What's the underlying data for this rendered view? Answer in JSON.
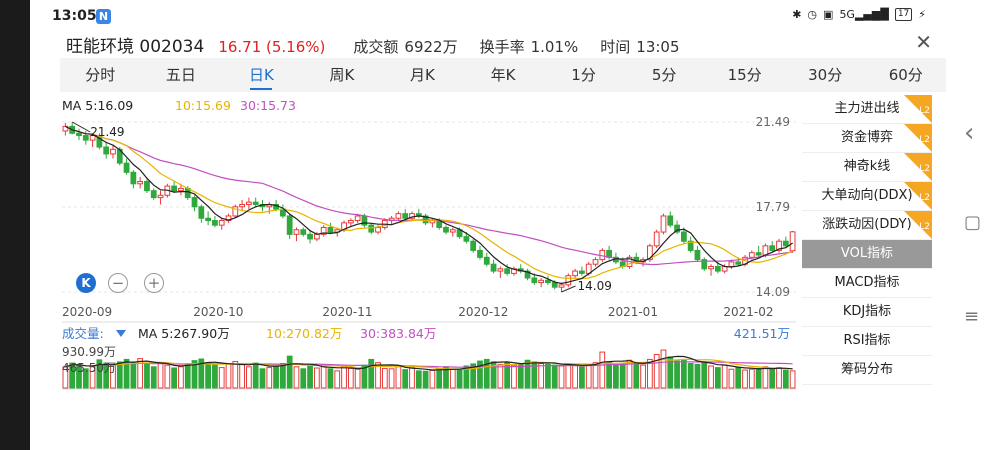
{
  "status_bar": {
    "time": "13:05",
    "app_badge": "N",
    "right_icons": [
      "bluetooth-icon",
      "alarm-icon",
      "hd-icon",
      "signal-icon"
    ],
    "signal_text": "5G",
    "battery": "17"
  },
  "header": {
    "name": "旺能环境 002034",
    "price": "16.71 (5.16%)",
    "turnover_label": "成交额",
    "turnover_value": "6922万",
    "turnover_rate_label": "换手率",
    "turnover_rate_value": "1.01%",
    "time_label": "时间",
    "time_value": "13:05",
    "close_glyph": "✕"
  },
  "tabs": [
    {
      "label": "分时",
      "active": false
    },
    {
      "label": "五日",
      "active": false
    },
    {
      "label": "日K",
      "active": true
    },
    {
      "label": "周K",
      "active": false
    },
    {
      "label": "月K",
      "active": false
    },
    {
      "label": "年K",
      "active": false
    },
    {
      "label": "1分",
      "active": false
    },
    {
      "label": "5分",
      "active": false
    },
    {
      "label": "15分",
      "active": false
    },
    {
      "label": "30分",
      "active": false
    },
    {
      "label": "60分",
      "active": false
    }
  ],
  "ma_legend": {
    "ma5": "MA  5:16.09",
    "ma10": "10:15.69",
    "ma30": "30:15.73"
  },
  "vol_legend": {
    "label": "成交量:",
    "ma5": "MA  5:267.90万",
    "ma10": "10:270.82万",
    "ma30": "30:383.84万",
    "max_label": "421.51万",
    "left_top": "930.99万",
    "left_mid": "465.50万"
  },
  "price_labels": {
    "high": "21.49",
    "mid": "17.79",
    "low": "14.09",
    "high_annot": "21.49",
    "low_annot": "14.09"
  },
  "colors": {
    "up": "#e83a3a",
    "down": "#2fa83c",
    "ma5": "#222222",
    "ma10": "#e8b400",
    "ma30": "#c24fc2",
    "accent": "#1f6fd1",
    "panel_badge": "#f5a623"
  },
  "side_panel": [
    {
      "label": "主力进出线",
      "badge": true,
      "selected": false
    },
    {
      "label": "资金博弈",
      "badge": true,
      "selected": false
    },
    {
      "label": "神奇k线",
      "badge": true,
      "selected": false
    },
    {
      "label": "大单动向(DDX)",
      "badge": true,
      "selected": false
    },
    {
      "label": "涨跌动因(DDY)",
      "badge": true,
      "selected": false
    },
    {
      "label": "VOL指标",
      "badge": false,
      "selected": true
    },
    {
      "label": "MACD指标",
      "badge": false,
      "selected": false
    },
    {
      "label": "KDJ指标",
      "badge": false,
      "selected": false
    },
    {
      "label": "RSI指标",
      "badge": false,
      "selected": false
    },
    {
      "label": "筹码分布",
      "badge": false,
      "selected": false
    }
  ],
  "side_badge_text": "L2",
  "zoom": {
    "k_label": "K",
    "minus": "−",
    "plus": "+"
  },
  "nav": {
    "back": "‹",
    "home": "▢",
    "menu": "≡"
  },
  "chart_data": {
    "type": "candlestick",
    "x_tick_labels": [
      "2020-09",
      "2020-10",
      "2020-11",
      "2020-12",
      "2021-01",
      "2021-02"
    ],
    "x_tick_index": [
      0,
      23,
      42,
      62,
      84,
      101
    ],
    "ylim": [
      14.09,
      21.49
    ],
    "y_ticks": [
      21.49,
      17.79,
      14.09
    ],
    "ohlc": [
      [
        21.1,
        21.45,
        20.9,
        21.3
      ],
      [
        21.3,
        21.49,
        20.95,
        21.0
      ],
      [
        21.0,
        21.2,
        20.7,
        20.9
      ],
      [
        20.9,
        21.1,
        20.5,
        20.7
      ],
      [
        20.7,
        21.0,
        20.4,
        20.9
      ],
      [
        20.9,
        21.0,
        20.3,
        20.4
      ],
      [
        20.4,
        20.6,
        19.9,
        20.1
      ],
      [
        20.1,
        20.5,
        19.9,
        20.3
      ],
      [
        20.3,
        20.4,
        19.6,
        19.7
      ],
      [
        19.7,
        19.9,
        19.2,
        19.3
      ],
      [
        19.3,
        19.4,
        18.6,
        18.8
      ],
      [
        18.8,
        19.1,
        18.6,
        18.9
      ],
      [
        18.9,
        19.0,
        18.4,
        18.5
      ],
      [
        18.5,
        18.6,
        18.1,
        18.2
      ],
      [
        18.2,
        18.5,
        17.9,
        18.3
      ],
      [
        18.3,
        18.8,
        18.2,
        18.7
      ],
      [
        18.7,
        18.9,
        18.4,
        18.5
      ],
      [
        18.5,
        18.8,
        18.3,
        18.6
      ],
      [
        18.6,
        18.7,
        18.1,
        18.2
      ],
      [
        18.2,
        18.3,
        17.6,
        17.8
      ],
      [
        17.8,
        17.9,
        17.1,
        17.3
      ],
      [
        17.3,
        17.6,
        17.0,
        17.2
      ],
      [
        17.2,
        17.4,
        16.9,
        17.0
      ],
      [
        17.0,
        17.3,
        16.8,
        17.2
      ],
      [
        17.2,
        17.5,
        17.1,
        17.4
      ],
      [
        17.4,
        17.9,
        17.3,
        17.8
      ],
      [
        17.8,
        18.1,
        17.6,
        17.9
      ],
      [
        17.9,
        18.2,
        17.7,
        18.0
      ],
      [
        18.0,
        18.2,
        17.8,
        17.9
      ],
      [
        17.9,
        18.1,
        17.6,
        17.8
      ],
      [
        17.8,
        18.0,
        17.5,
        17.9
      ],
      [
        17.9,
        18.1,
        17.6,
        17.7
      ],
      [
        17.7,
        17.9,
        17.3,
        17.4
      ],
      [
        17.4,
        17.5,
        16.4,
        16.6
      ],
      [
        16.6,
        16.9,
        16.3,
        16.8
      ],
      [
        16.8,
        16.9,
        16.5,
        16.6
      ],
      [
        16.6,
        16.8,
        16.2,
        16.4
      ],
      [
        16.4,
        16.7,
        16.3,
        16.6
      ],
      [
        16.6,
        17.0,
        16.5,
        16.9
      ],
      [
        16.9,
        17.1,
        16.6,
        16.7
      ],
      [
        16.7,
        16.9,
        16.5,
        16.8
      ],
      [
        16.8,
        17.2,
        16.7,
        17.1
      ],
      [
        17.1,
        17.3,
        16.9,
        17.2
      ],
      [
        17.2,
        17.5,
        17.1,
        17.4
      ],
      [
        17.4,
        17.5,
        16.9,
        17.0
      ],
      [
        17.0,
        17.1,
        16.6,
        16.7
      ],
      [
        16.7,
        17.0,
        16.6,
        16.9
      ],
      [
        16.9,
        17.3,
        16.8,
        17.2
      ],
      [
        17.2,
        17.4,
        17.0,
        17.3
      ],
      [
        17.3,
        17.6,
        17.2,
        17.5
      ],
      [
        17.5,
        17.7,
        17.2,
        17.3
      ],
      [
        17.3,
        17.6,
        17.2,
        17.5
      ],
      [
        17.5,
        17.7,
        17.3,
        17.4
      ],
      [
        17.4,
        17.5,
        17.0,
        17.1
      ],
      [
        17.1,
        17.3,
        16.9,
        17.2
      ],
      [
        17.2,
        17.3,
        16.8,
        16.9
      ],
      [
        16.9,
        17.0,
        16.6,
        16.7
      ],
      [
        16.7,
        16.9,
        16.5,
        16.8
      ],
      [
        16.8,
        16.9,
        16.4,
        16.5
      ],
      [
        16.5,
        16.7,
        16.2,
        16.3
      ],
      [
        16.3,
        16.4,
        15.8,
        15.9
      ],
      [
        15.9,
        16.1,
        15.5,
        15.6
      ],
      [
        15.6,
        15.8,
        15.2,
        15.3
      ],
      [
        15.3,
        15.5,
        14.9,
        15.0
      ],
      [
        15.0,
        15.2,
        14.7,
        15.1
      ],
      [
        15.1,
        15.3,
        14.8,
        14.9
      ],
      [
        14.9,
        15.2,
        14.8,
        15.1
      ],
      [
        15.1,
        15.3,
        14.9,
        15.0
      ],
      [
        15.0,
        15.1,
        14.6,
        14.7
      ],
      [
        14.7,
        14.9,
        14.4,
        14.5
      ],
      [
        14.5,
        14.7,
        14.3,
        14.6
      ],
      [
        14.6,
        14.8,
        14.4,
        14.5
      ],
      [
        14.5,
        14.6,
        14.2,
        14.3
      ],
      [
        14.3,
        14.5,
        14.09,
        14.4
      ],
      [
        14.4,
        14.9,
        14.3,
        14.8
      ],
      [
        14.8,
        15.1,
        14.7,
        15.0
      ],
      [
        15.0,
        15.2,
        14.8,
        14.9
      ],
      [
        14.9,
        15.4,
        14.8,
        15.3
      ],
      [
        15.3,
        15.6,
        15.2,
        15.5
      ],
      [
        15.5,
        16.0,
        15.4,
        15.9
      ],
      [
        15.9,
        16.1,
        15.5,
        15.6
      ],
      [
        15.6,
        15.8,
        15.3,
        15.4
      ],
      [
        15.4,
        15.6,
        15.1,
        15.2
      ],
      [
        15.2,
        15.7,
        15.1,
        15.6
      ],
      [
        15.6,
        15.8,
        15.3,
        15.4
      ],
      [
        15.4,
        15.6,
        15.2,
        15.5
      ],
      [
        15.5,
        16.2,
        15.4,
        16.1
      ],
      [
        16.1,
        16.8,
        16.0,
        16.7
      ],
      [
        16.7,
        17.5,
        16.6,
        17.4
      ],
      [
        17.4,
        17.6,
        16.9,
        17.0
      ],
      [
        17.0,
        17.2,
        16.6,
        16.7
      ],
      [
        16.7,
        16.9,
        16.2,
        16.3
      ],
      [
        16.3,
        16.5,
        15.8,
        15.9
      ],
      [
        15.9,
        16.1,
        15.4,
        15.5
      ],
      [
        15.5,
        15.6,
        15.0,
        15.1
      ],
      [
        15.1,
        15.3,
        14.8,
        15.2
      ],
      [
        15.2,
        15.4,
        14.9,
        15.0
      ],
      [
        15.0,
        15.3,
        14.9,
        15.2
      ],
      [
        15.2,
        15.5,
        15.1,
        15.4
      ],
      [
        15.4,
        15.6,
        15.2,
        15.3
      ],
      [
        15.3,
        15.7,
        15.2,
        15.6
      ],
      [
        15.6,
        15.9,
        15.5,
        15.8
      ],
      [
        15.8,
        16.1,
        15.6,
        15.7
      ],
      [
        15.7,
        16.2,
        15.6,
        16.1
      ],
      [
        16.1,
        16.3,
        15.8,
        15.9
      ],
      [
        15.9,
        16.4,
        15.8,
        16.3
      ],
      [
        16.3,
        16.5,
        16.0,
        16.1
      ],
      [
        15.89,
        16.75,
        15.8,
        16.71
      ]
    ],
    "volume": [
      520,
      610,
      580,
      470,
      520,
      690,
      610,
      560,
      640,
      700,
      640,
      720,
      590,
      520,
      610,
      560,
      490,
      520,
      600,
      670,
      710,
      620,
      560,
      500,
      590,
      650,
      580,
      520,
      610,
      470,
      500,
      560,
      600,
      780,
      520,
      470,
      540,
      490,
      560,
      470,
      420,
      530,
      480,
      460,
      560,
      700,
      620,
      480,
      470,
      520,
      450,
      500,
      420,
      410,
      430,
      470,
      520,
      460,
      440,
      540,
      590,
      660,
      700,
      640,
      580,
      620,
      560,
      590,
      680,
      640,
      600,
      580,
      560,
      540,
      600,
      560,
      520,
      580,
      620,
      880,
      640,
      560,
      590,
      680,
      620,
      560,
      700,
      820,
      930,
      760,
      660,
      690,
      600,
      580,
      640,
      540,
      500,
      560,
      460,
      500,
      440,
      460,
      480,
      520,
      470,
      500,
      440,
      420
    ],
    "volume_unit": "万",
    "volume_ylim": [
      0,
      930.99
    ],
    "ma_values": {
      "ma5": 16.09,
      "ma10": 15.69,
      "ma30": 15.73
    }
  }
}
